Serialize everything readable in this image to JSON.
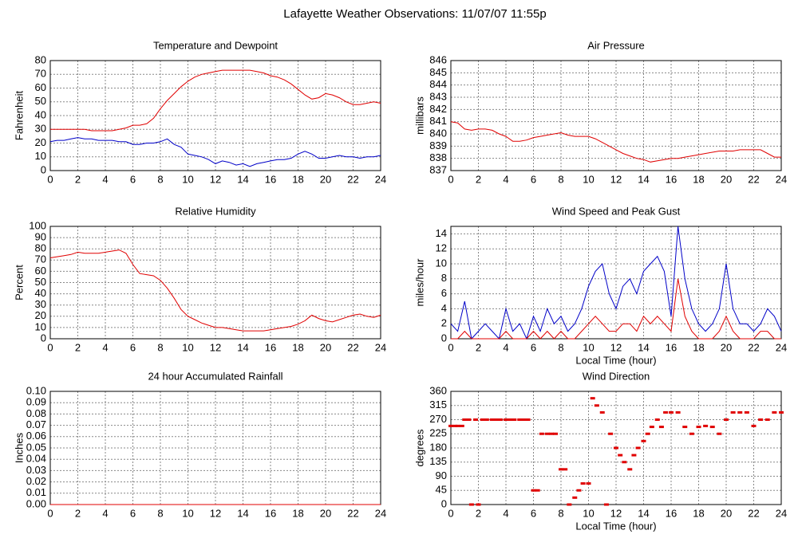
{
  "title": "Lafayette Weather Observations: 11/07/07 11:55p",
  "chart_data": [
    {
      "type": "line",
      "title": "Temperature and Dewpoint",
      "ylabel": "Fahrenheit",
      "x": [
        0,
        0.5,
        1,
        1.5,
        2,
        2.5,
        3,
        3.5,
        4,
        4.5,
        5,
        5.5,
        6,
        6.5,
        7,
        7.5,
        8,
        8.5,
        9,
        9.5,
        10,
        10.5,
        11,
        11.5,
        12,
        12.5,
        13,
        13.5,
        14,
        14.5,
        15,
        15.5,
        16,
        16.5,
        17,
        17.5,
        18,
        18.5,
        19,
        19.5,
        20,
        20.5,
        21,
        21.5,
        22,
        22.5,
        23,
        23.5,
        24
      ],
      "series": [
        {
          "color": "#e00000",
          "values": [
            30,
            30,
            30,
            30,
            30,
            30,
            29,
            29,
            29,
            29,
            30,
            31,
            33,
            33,
            34,
            38,
            45,
            51,
            56,
            61,
            65,
            68,
            70,
            71,
            72,
            73,
            73,
            73,
            73,
            73,
            72,
            71,
            69,
            68,
            66,
            63,
            59,
            55,
            52,
            53,
            56,
            55,
            53,
            50,
            48,
            48,
            49,
            50,
            49
          ]
        },
        {
          "color": "#0000c8",
          "values": [
            21,
            22,
            22,
            23,
            24,
            23,
            23,
            22,
            22,
            22,
            21,
            21,
            19,
            19,
            20,
            20,
            21,
            23,
            19,
            17,
            12,
            11,
            10,
            8,
            5,
            7,
            6,
            4,
            5,
            3,
            5,
            6,
            7,
            8,
            8,
            9,
            12,
            14,
            12,
            9,
            9,
            10,
            11,
            10,
            10,
            9,
            10,
            10,
            11
          ]
        }
      ],
      "xlim": [
        0,
        24
      ],
      "xticks": [
        0,
        2,
        4,
        6,
        8,
        10,
        12,
        14,
        16,
        18,
        20,
        22,
        24
      ],
      "ylim": [
        0,
        80
      ],
      "yticks": [
        0,
        10,
        20,
        30,
        40,
        50,
        60,
        70,
        80
      ],
      "grid": true
    },
    {
      "type": "line",
      "title": "Air Pressure",
      "ylabel": "millibars",
      "x": [
        0,
        0.5,
        1,
        1.5,
        2,
        2.5,
        3,
        3.5,
        4,
        4.5,
        5,
        5.5,
        6,
        6.5,
        7,
        7.5,
        8,
        8.5,
        9,
        9.5,
        10,
        10.5,
        11,
        11.5,
        12,
        12.5,
        13,
        13.5,
        14,
        14.5,
        15,
        15.5,
        16,
        16.5,
        17,
        17.5,
        18,
        18.5,
        19,
        19.5,
        20,
        20.5,
        21,
        21.5,
        22,
        22.5,
        23,
        23.5,
        24
      ],
      "series": [
        {
          "color": "#e00000",
          "values": [
            841,
            840.9,
            840.4,
            840.3,
            840.4,
            840.4,
            840.3,
            840,
            839.8,
            839.4,
            839.4,
            839.5,
            839.7,
            839.8,
            839.9,
            840,
            840.1,
            839.9,
            839.8,
            839.8,
            839.8,
            839.6,
            839.3,
            839,
            838.7,
            838.4,
            838.2,
            838,
            837.9,
            837.7,
            837.8,
            837.9,
            838,
            838,
            838.1,
            838.2,
            838.3,
            838.4,
            838.5,
            838.6,
            838.6,
            838.6,
            838.7,
            838.7,
            838.7,
            838.7,
            838.4,
            838.1,
            838.1
          ]
        }
      ],
      "xlim": [
        0,
        24
      ],
      "xticks": [
        0,
        2,
        4,
        6,
        8,
        10,
        12,
        14,
        16,
        18,
        20,
        22,
        24
      ],
      "ylim": [
        837,
        846
      ],
      "yticks": [
        837,
        838,
        839,
        840,
        841,
        842,
        843,
        844,
        845,
        846
      ],
      "grid": true
    },
    {
      "type": "line",
      "title": "Relative Humidity",
      "ylabel": "Percent",
      "x": [
        0,
        0.5,
        1,
        1.5,
        2,
        2.5,
        3,
        3.5,
        4,
        4.5,
        5,
        5.5,
        6,
        6.5,
        7,
        7.5,
        8,
        8.5,
        9,
        9.5,
        10,
        10.5,
        11,
        11.5,
        12,
        12.5,
        13,
        13.5,
        14,
        14.5,
        15,
        15.5,
        16,
        16.5,
        17,
        17.5,
        18,
        18.5,
        19,
        19.5,
        20,
        20.5,
        21,
        21.5,
        22,
        22.5,
        23,
        23.5,
        24
      ],
      "series": [
        {
          "color": "#e00000",
          "values": [
            72,
            73,
            74,
            75,
            77,
            76,
            76,
            76,
            77,
            78,
            79,
            76,
            66,
            58,
            57,
            56,
            52,
            45,
            36,
            26,
            20,
            17,
            14,
            12,
            10,
            10,
            9,
            8,
            7,
            7,
            7,
            7,
            8,
            9,
            10,
            11,
            13,
            16,
            21,
            18,
            16,
            15,
            17,
            19,
            21,
            22,
            20,
            19,
            21
          ]
        }
      ],
      "xlim": [
        0,
        24
      ],
      "xticks": [
        0,
        2,
        4,
        6,
        8,
        10,
        12,
        14,
        16,
        18,
        20,
        22,
        24
      ],
      "ylim": [
        0,
        100
      ],
      "yticks": [
        0,
        10,
        20,
        30,
        40,
        50,
        60,
        70,
        80,
        90,
        100
      ],
      "grid": true
    },
    {
      "type": "line",
      "title": "Wind Speed and Peak Gust",
      "ylabel": "miles/hour",
      "xlabel": "Local Time (hour)",
      "x": [
        0,
        0.5,
        1,
        1.5,
        2,
        2.5,
        3,
        3.5,
        4,
        4.5,
        5,
        5.5,
        6,
        6.5,
        7,
        7.5,
        8,
        8.5,
        9,
        9.5,
        10,
        10.5,
        11,
        11.5,
        12,
        12.5,
        13,
        13.5,
        14,
        14.5,
        15,
        15.5,
        16,
        16.5,
        17,
        17.5,
        18,
        18.5,
        19,
        19.5,
        20,
        20.5,
        21,
        21.5,
        22,
        22.5,
        23,
        23.5,
        24
      ],
      "series": [
        {
          "color": "#0000c8",
          "values": [
            2,
            1,
            5,
            0,
            1,
            2,
            1,
            0,
            4,
            1,
            2,
            0,
            3,
            1,
            4,
            2,
            3,
            1,
            2,
            4,
            7,
            9,
            10,
            6,
            4,
            7,
            8,
            6,
            9,
            10,
            11,
            9,
            3,
            15,
            8,
            4,
            2,
            1,
            2,
            4,
            10,
            4,
            2,
            2,
            1,
            2,
            4,
            3,
            1
          ]
        },
        {
          "color": "#e00000",
          "values": [
            0,
            0,
            1,
            0,
            0,
            0,
            0,
            0,
            1,
            0,
            0,
            0,
            1,
            0,
            1,
            0,
            1,
            0,
            0,
            1,
            2,
            3,
            2,
            1,
            1,
            2,
            2,
            1,
            3,
            2,
            3,
            2,
            1,
            8,
            3,
            1,
            0,
            0,
            0,
            1,
            3,
            1,
            0,
            0,
            0,
            1,
            1,
            0,
            0
          ]
        }
      ],
      "xlim": [
        0,
        24
      ],
      "xticks": [
        0,
        2,
        4,
        6,
        8,
        10,
        12,
        14,
        16,
        18,
        20,
        22,
        24
      ],
      "ylim": [
        0,
        15
      ],
      "yticks": [
        0,
        2,
        4,
        6,
        8,
        10,
        12,
        14
      ],
      "grid": true
    },
    {
      "type": "line",
      "title": "24 hour Accumulated Rainfall",
      "ylabel": "Inches",
      "x": [
        0,
        24
      ],
      "series": [
        {
          "color": "#e00000",
          "values": [
            0,
            0
          ]
        }
      ],
      "xlim": [
        0,
        24
      ],
      "xticks": [
        0,
        2,
        4,
        6,
        8,
        10,
        12,
        14,
        16,
        18,
        20,
        22,
        24
      ],
      "ylim": [
        0,
        0.1
      ],
      "yticks": [
        {
          "value": 0,
          "label": "0.00"
        },
        {
          "value": 0.01,
          "label": "0.01"
        },
        {
          "value": 0.02,
          "label": "0.02"
        },
        {
          "value": 0.03,
          "label": "0.03"
        },
        {
          "value": 0.04,
          "label": "0.04"
        },
        {
          "value": 0.05,
          "label": "0.05"
        },
        {
          "value": 0.06,
          "label": "0.06"
        },
        {
          "value": 0.07,
          "label": "0.07"
        },
        {
          "value": 0.08,
          "label": "0.08"
        },
        {
          "value": 0.09,
          "label": "0.09"
        },
        {
          "value": 0.1,
          "label": "0.10"
        }
      ],
      "grid": true
    },
    {
      "type": "scatter",
      "title": "Wind Direction",
      "ylabel": "degrees",
      "xlabel": "Local Time (hour)",
      "x": [
        0,
        0.3,
        0.5,
        0.8,
        1,
        1.3,
        1.5,
        1.8,
        2,
        2.3,
        2.6,
        3,
        3.3,
        3.6,
        4,
        4.3,
        4.6,
        5,
        5.3,
        5.6,
        6,
        6.3,
        6.6,
        7,
        7.3,
        7.6,
        8,
        8.3,
        8.6,
        9,
        9.3,
        9.6,
        10,
        10.3,
        10.6,
        11,
        11.3,
        11.6,
        12,
        12.3,
        12.6,
        13,
        13.3,
        13.6,
        14,
        14.3,
        14.6,
        15,
        15.3,
        15.6,
        16,
        16.5,
        17,
        17.5,
        18,
        18.5,
        19,
        19.5,
        20,
        20.5,
        21,
        21.5,
        22,
        22.5,
        23,
        23.5,
        24
      ],
      "series": [
        {
          "color": "#e00000",
          "values": [
            250,
            250,
            250,
            250,
            270,
            270,
            0,
            270,
            0,
            270,
            270,
            270,
            270,
            270,
            270,
            270,
            270,
            270,
            270,
            270,
            45,
            45,
            225,
            225,
            225,
            225,
            112,
            112,
            0,
            22,
            45,
            67,
            67,
            338,
            315,
            293,
            0,
            225,
            180,
            157,
            135,
            112,
            157,
            180,
            202,
            225,
            247,
            270,
            247,
            293,
            293,
            293,
            247,
            225,
            247,
            250,
            247,
            225,
            270,
            293,
            293,
            293,
            250,
            270,
            270,
            293,
            293
          ]
        }
      ],
      "xlim": [
        0,
        24
      ],
      "xticks": [
        0,
        2,
        4,
        6,
        8,
        10,
        12,
        14,
        16,
        18,
        20,
        22,
        24
      ],
      "ylim": [
        0,
        360
      ],
      "yticks": [
        0,
        45,
        90,
        135,
        180,
        225,
        270,
        315,
        360
      ],
      "grid": true
    }
  ]
}
